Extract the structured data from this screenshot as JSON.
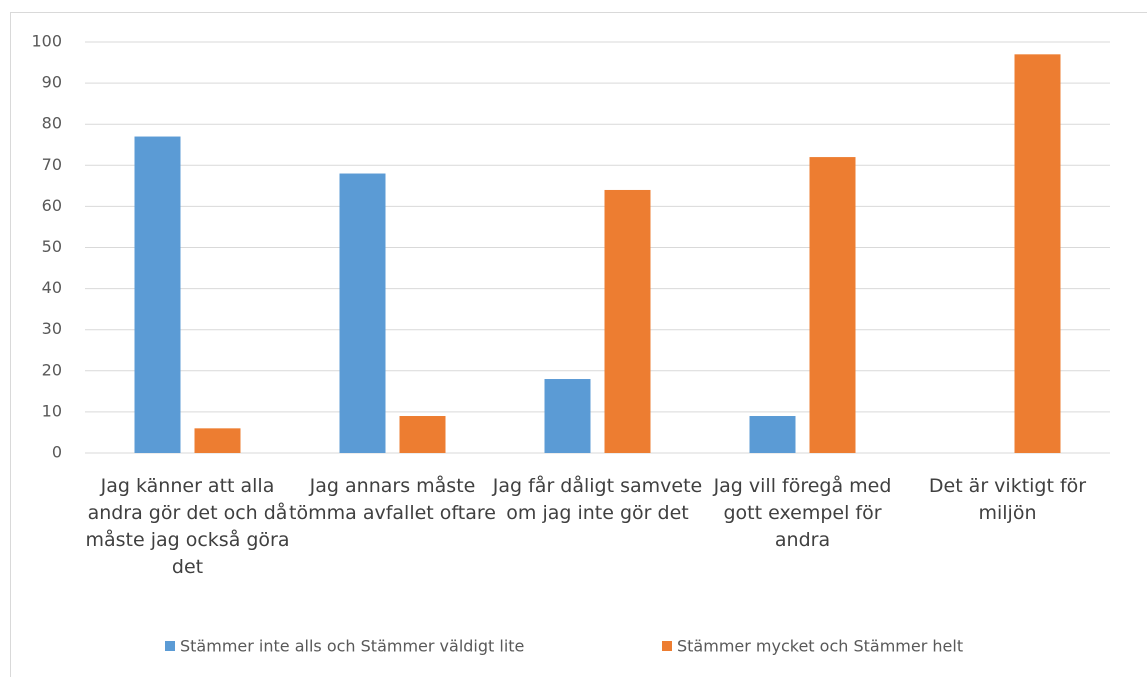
{
  "chart_data": {
    "type": "bar",
    "categories": [
      "Jag känner att alla andra gör det och då måste jag också göra det",
      "Jag annars måste tömma avfallet oftare",
      "Jag får dåligt samvete om jag inte gör det",
      "Jag vill föregå med gott exempel för andra",
      "Det är viktigt för miljön"
    ],
    "series": [
      {
        "name": "Stämmer inte alls och Stämmer väldigt lite",
        "color": "#5b9bd5",
        "values": [
          77,
          68,
          18,
          9,
          0
        ]
      },
      {
        "name": "Stämmer mycket och Stämmer helt",
        "color": "#ed7d31",
        "values": [
          6,
          9,
          64,
          72,
          97
        ]
      }
    ],
    "ylim": [
      0,
      100
    ],
    "yticks": [
      0,
      10,
      20,
      30,
      40,
      50,
      60,
      70,
      80,
      90,
      100
    ],
    "grid": true,
    "legend": "bottom"
  }
}
